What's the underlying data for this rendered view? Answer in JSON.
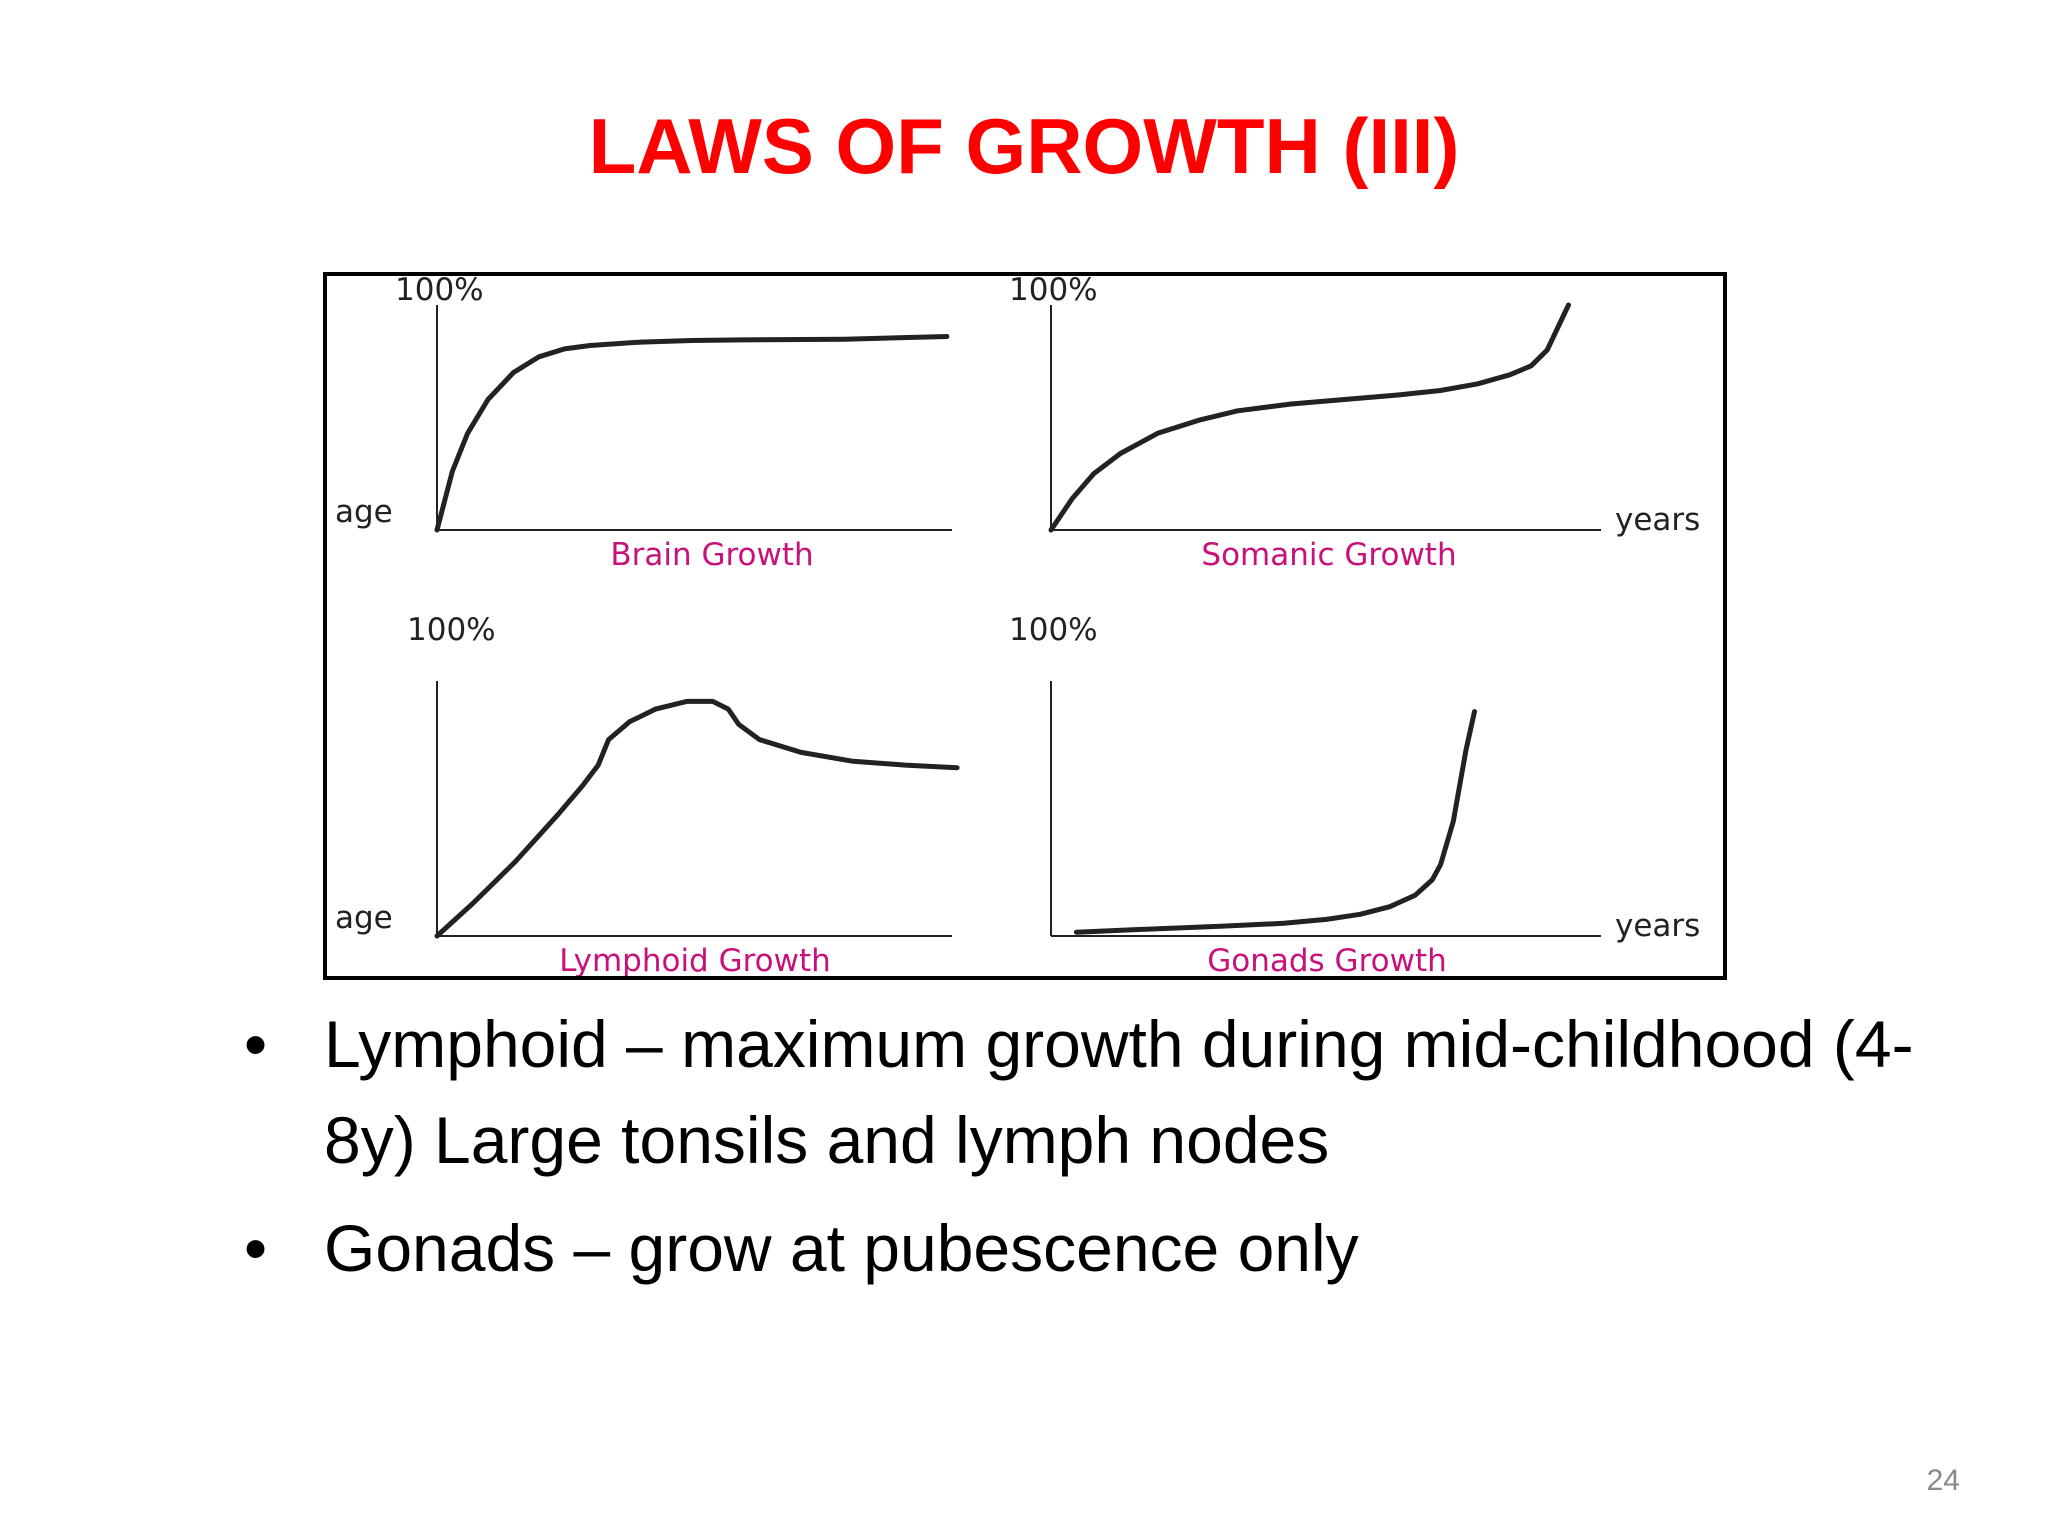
{
  "slide": {
    "title": "LAWS OF GROWTH (III)",
    "page_number": "24",
    "bullet_symbol": "•",
    "bullets": [
      "Lymphoid – maximum growth during mid-childhood (4-8y) Large tonsils and lymph nodes",
      "Gonads – grow at pubescence only"
    ]
  },
  "colors": {
    "title": "#ff0000",
    "chart_title": "#c8117a",
    "curve": "#222222"
  },
  "chart_data": [
    {
      "type": "line",
      "title": "Brain Growth",
      "ylabel_top": "100%",
      "side_label": "age",
      "x_end_label": "",
      "xlim": [
        0,
        10
      ],
      "ylim": [
        0,
        100
      ],
      "x": [
        0,
        0.3,
        0.6,
        1,
        1.5,
        2,
        2.5,
        3,
        4,
        5,
        6,
        8,
        10
      ],
      "y": [
        0,
        26,
        43,
        58,
        70,
        77,
        80.5,
        82,
        83.5,
        84.2,
        84.5,
        84.8,
        86
      ]
    },
    {
      "type": "line",
      "title": "Somanic Growth",
      "ylabel_top": "100%",
      "side_label": "",
      "x_end_label": "years",
      "xlim": [
        0,
        10
      ],
      "ylim": [
        0,
        100
      ],
      "x": [
        0,
        0.4,
        0.8,
        1.3,
        2,
        2.8,
        3.5,
        4.5,
        5.5,
        6.5,
        7.3,
        8,
        8.6,
        9,
        9.3,
        9.7
      ],
      "y": [
        0,
        14,
        25,
        34,
        43,
        49,
        53,
        56,
        58,
        60,
        62,
        65,
        69,
        73,
        80,
        100
      ]
    },
    {
      "type": "line",
      "title": "Lymphoid Growth",
      "ylabel_top": "100%",
      "side_label": "age",
      "x_end_label": "",
      "xlim": [
        0,
        10
      ],
      "ylim": [
        0,
        100
      ],
      "x": [
        0,
        0.7,
        1.5,
        2.3,
        2.8,
        3.1,
        3.3,
        3.7,
        4.2,
        4.8,
        5.3,
        5.6,
        5.8,
        6.2,
        7,
        8,
        9,
        10
      ],
      "y": [
        0,
        13,
        29,
        47,
        59,
        67,
        77,
        84,
        89,
        92,
        92,
        89,
        83,
        77,
        72,
        68.5,
        67,
        66
      ]
    },
    {
      "type": "line",
      "title": "Gonads Growth",
      "ylabel_top": "100%",
      "side_label": "",
      "x_end_label": "years",
      "xlim": [
        0,
        10
      ],
      "ylim": [
        0,
        100
      ],
      "x": [
        0.6,
        2,
        4,
        5.5,
        6.5,
        7.3,
        8,
        8.6,
        9,
        9.2,
        9.5,
        9.8,
        10
      ],
      "y": [
        1.5,
        2.5,
        3.8,
        5,
        6.5,
        8.5,
        11.5,
        16,
        22,
        28,
        45,
        73,
        88
      ]
    }
  ]
}
